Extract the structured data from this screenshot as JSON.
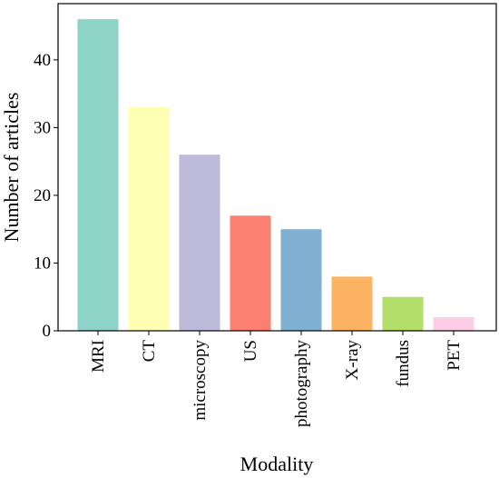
{
  "chart_data": {
    "type": "bar",
    "categories": [
      "MRI",
      "CT",
      "microscopy",
      "US",
      "photography",
      "X-ray",
      "fundus",
      "PET"
    ],
    "values": [
      46,
      33,
      26,
      17,
      15,
      8,
      5,
      2
    ],
    "colors": [
      "#8dd3c7",
      "#ffffb3",
      "#bebada",
      "#fb8072",
      "#80b1d3",
      "#fdb462",
      "#b3de69",
      "#fccde5"
    ],
    "title": "",
    "xlabel": "Modality",
    "ylabel": "Number of articles",
    "ylim": [
      0,
      48.3
    ],
    "yticks": [
      0,
      10,
      20,
      30,
      40
    ],
    "grid": false,
    "legend": "none"
  }
}
